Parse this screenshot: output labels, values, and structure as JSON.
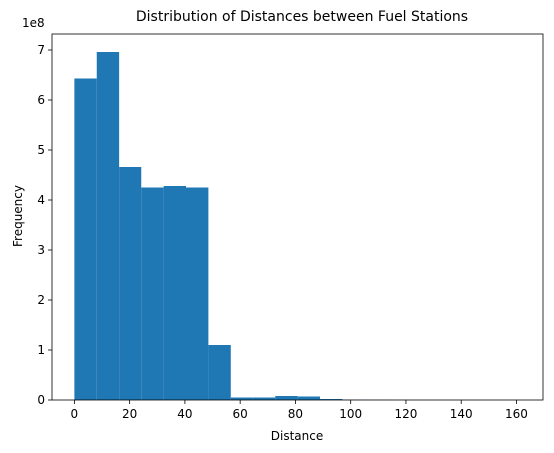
{
  "chart_data": {
    "type": "bar",
    "title": "Distribution of Distances between Fuel Stations",
    "xlabel": "Distance",
    "ylabel": "Frequency",
    "y_offset_label": "1e8",
    "y_scale": 100000000,
    "xlim": [
      -8.1,
      169.6
    ],
    "ylim": [
      0,
      7.32
    ],
    "xticks": [
      0,
      20,
      40,
      60,
      80,
      100,
      120,
      140,
      160
    ],
    "yticks": [
      0,
      1,
      2,
      3,
      4,
      5,
      6,
      7
    ],
    "grid": false,
    "bin_edges": [
      0,
      8.1,
      16.2,
      24.2,
      32.3,
      40.4,
      48.5,
      56.6,
      64.6,
      72.7,
      80.8,
      88.9,
      97.0,
      105.0,
      113.1,
      121.2,
      129.3,
      137.4,
      145.4,
      153.5,
      161.6
    ],
    "values": [
      6.43,
      6.96,
      4.66,
      4.25,
      4.28,
      4.25,
      1.1,
      0.05,
      0.05,
      0.08,
      0.07,
      0.02,
      0.005,
      0.003,
      0.002,
      0.001,
      0.001,
      0.001,
      0.001,
      0.001
    ],
    "colors": {
      "bar": "#1f77b4"
    }
  }
}
